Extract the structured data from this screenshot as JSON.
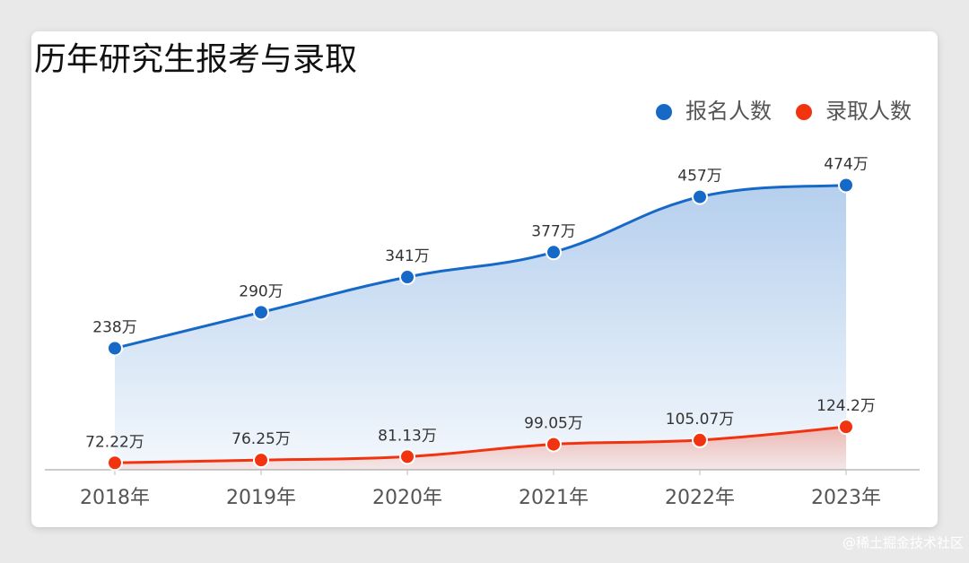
{
  "chart_data": {
    "type": "line",
    "title": "历年研究生报考与录取",
    "categories": [
      "2018年",
      "2019年",
      "2020年",
      "2021年",
      "2022年",
      "2023年"
    ],
    "series": [
      {
        "name": "报名人数",
        "color": "#1769c7",
        "values": [
          238,
          290,
          341,
          377,
          457,
          474
        ],
        "value_labels": [
          "238万",
          "290万",
          "341万",
          "377万",
          "457万",
          "474万"
        ]
      },
      {
        "name": "录取人数",
        "color": "#f2330f",
        "values": [
          72.22,
          76.25,
          81.13,
          99.05,
          105.07,
          124.2
        ],
        "value_labels": [
          "72.22万",
          "76.25万",
          "81.13万",
          "99.05万",
          "105.07万",
          "124.2万"
        ]
      }
    ],
    "legend": "top-right",
    "smooth": true,
    "area": true
  },
  "watermark": "@稀土掘金技术社区"
}
